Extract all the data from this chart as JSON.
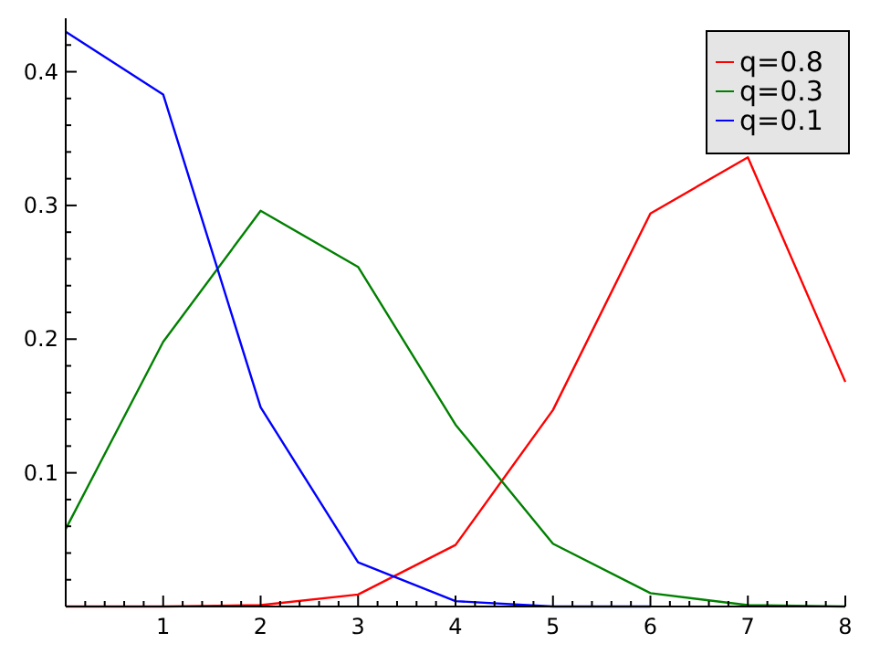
{
  "chart_data": {
    "type": "line",
    "x": [
      0,
      1,
      2,
      3,
      4,
      5,
      6,
      7,
      8
    ],
    "series": [
      {
        "name": "q=0.8",
        "color": "#ff0000",
        "values": [
          0,
          0,
          0.001,
          0.009,
          0.046,
          0.147,
          0.294,
          0.336,
          0.168
        ]
      },
      {
        "name": "q=0.3",
        "color": "#008000",
        "values": [
          0.058,
          0.198,
          0.296,
          0.254,
          0.136,
          0.047,
          0.01,
          0.001,
          0
        ]
      },
      {
        "name": "q=0.1",
        "color": "#0000ff",
        "values": [
          0.43,
          0.383,
          0.149,
          0.033,
          0.004,
          0,
          0,
          null,
          null
        ]
      }
    ],
    "xlim": [
      0,
      8
    ],
    "ylim": [
      0,
      0.44
    ],
    "xticks": [
      {
        "value": 0.2,
        "label": null
      },
      {
        "value": 0.4,
        "label": null
      },
      {
        "value": 0.6,
        "label": null
      },
      {
        "value": 0.8,
        "label": null
      },
      1,
      {
        "value": 1.2,
        "label": null
      },
      {
        "value": 1.4,
        "label": null
      },
      {
        "value": 1.6,
        "label": null
      },
      {
        "value": 1.8,
        "label": null
      },
      2,
      {
        "value": 2.2,
        "label": null
      },
      {
        "value": 2.4,
        "label": null
      },
      {
        "value": 2.6,
        "label": null
      },
      {
        "value": 2.8,
        "label": null
      },
      3,
      {
        "value": 3.2,
        "label": null
      },
      {
        "value": 3.4,
        "label": null
      },
      {
        "value": 3.6,
        "label": null
      },
      {
        "value": 3.8,
        "label": null
      },
      4,
      {
        "value": 4.2,
        "label": null
      },
      {
        "value": 4.4,
        "label": null
      },
      {
        "value": 4.6,
        "label": null
      },
      {
        "value": 4.8,
        "label": null
      },
      5,
      {
        "value": 5.2,
        "label": null
      },
      {
        "value": 5.4,
        "label": null
      },
      {
        "value": 5.6,
        "label": null
      },
      {
        "value": 5.8,
        "label": null
      },
      6,
      {
        "value": 6.2,
        "label": null
      },
      {
        "value": 6.4,
        "label": null
      },
      {
        "value": 6.6,
        "label": null
      },
      {
        "value": 6.8,
        "label": null
      },
      7,
      {
        "value": 7.2,
        "label": null
      },
      {
        "value": 7.4,
        "label": null
      },
      {
        "value": 7.6,
        "label": null
      },
      {
        "value": 7.8,
        "label": null
      },
      8
    ],
    "yticks": [
      {
        "value": 0.02,
        "label": null
      },
      {
        "value": 0.04,
        "label": null
      },
      {
        "value": 0.06,
        "label": null
      },
      {
        "value": 0.08,
        "label": null
      },
      0.1,
      {
        "value": 0.12,
        "label": null
      },
      {
        "value": 0.14,
        "label": null
      },
      {
        "value": 0.16,
        "label": null
      },
      {
        "value": 0.18,
        "label": null
      },
      0.2,
      {
        "value": 0.22,
        "label": null
      },
      {
        "value": 0.24,
        "label": null
      },
      {
        "value": 0.26,
        "label": null
      },
      {
        "value": 0.28,
        "label": null
      },
      0.3,
      {
        "value": 0.32,
        "label": null
      },
      {
        "value": 0.34,
        "label": null
      },
      {
        "value": 0.36,
        "label": null
      },
      {
        "value": 0.38,
        "label": null
      },
      0.4,
      {
        "value": 0.42,
        "label": null
      }
    ],
    "grid": false,
    "legend": "top right",
    "marker": "none",
    "line_style": "solid"
  }
}
